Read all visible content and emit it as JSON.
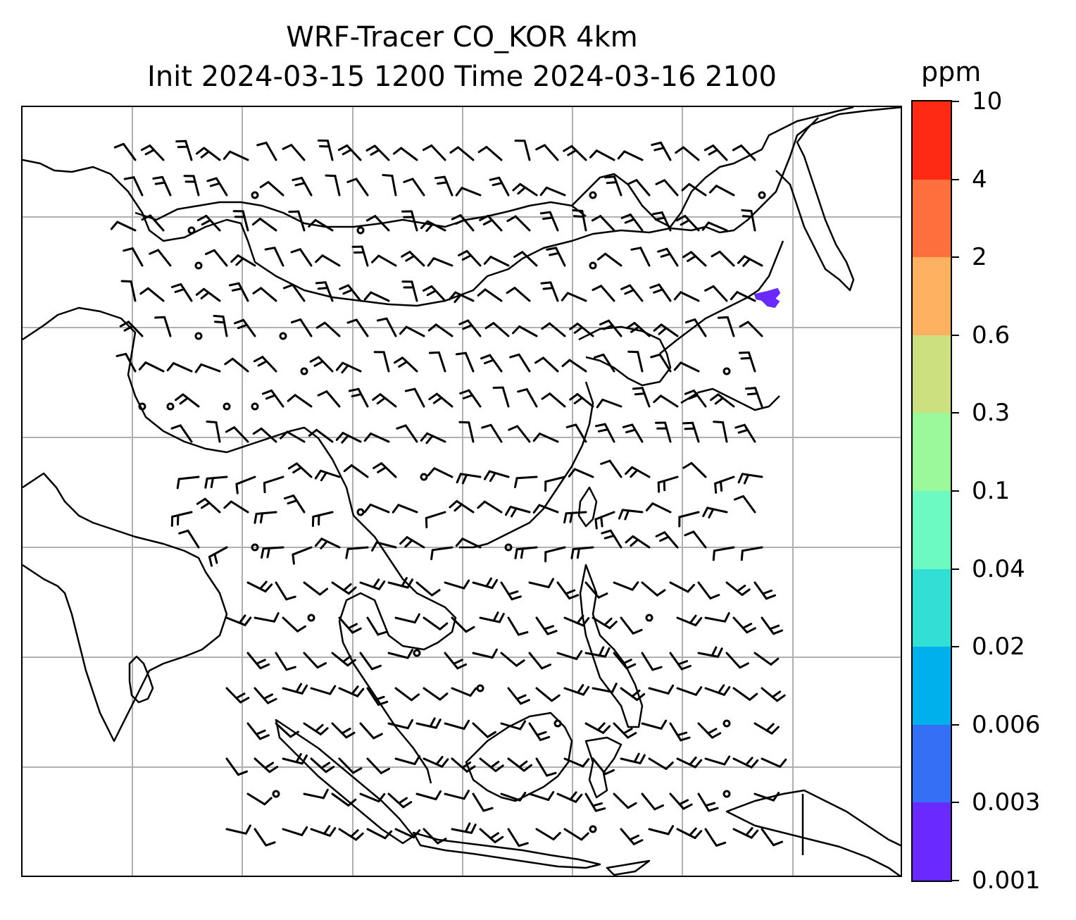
{
  "title": {
    "line1": "WRF-Tracer CO_KOR 4km",
    "line2": "Init 2024-03-15 1200 Time 2024-03-16 2100"
  },
  "colorbar": {
    "unit": "ppm",
    "ticks": [
      "0.001",
      "0.003",
      "0.006",
      "0.02",
      "0.04",
      "0.1",
      "0.3",
      "0.6",
      "2",
      "4",
      "10"
    ],
    "colors": [
      "#6a2aff",
      "#3470f5",
      "#00b0ec",
      "#32dfd5",
      "#6cfac0",
      "#9bf99a",
      "#cde080",
      "#feb161",
      "#ff703c",
      "#ff2a14"
    ]
  },
  "map": {
    "gridline_color": "#b0b0b0",
    "coastline_color": "#000000",
    "tracer_plume_level": "0.001",
    "tracer_plume_color": "#6a2aff",
    "calm_station_count": 33,
    "wind_barb_color": "#000000"
  }
}
